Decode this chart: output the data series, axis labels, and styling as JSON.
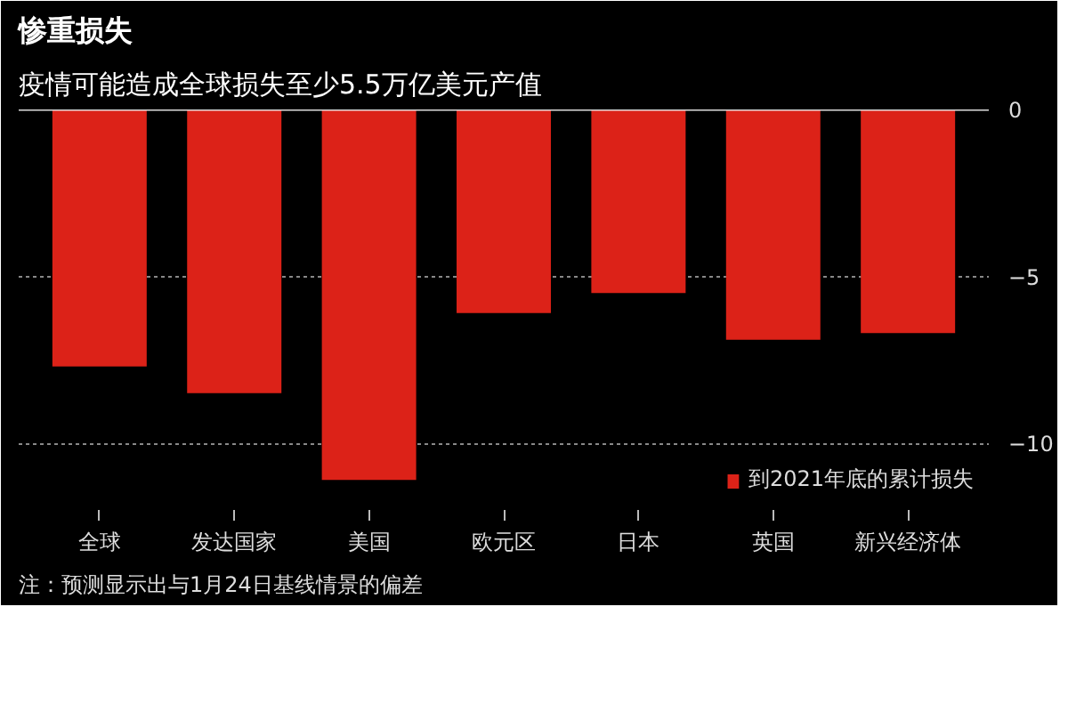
{
  "chart_data": {
    "type": "bar",
    "title": "惨重损失",
    "subtitle": "疫情可能造成全球损失至少5.5万亿美元产值",
    "categories": [
      "全球",
      "发达国家",
      "美国",
      "欧元区",
      "日本",
      "英国",
      "新兴经济体"
    ],
    "series": [
      {
        "name": "到2021年底的累计损失",
        "color": "#dc2218",
        "values": [
          -7.7,
          -8.5,
          -11.1,
          -6.1,
          -5.5,
          -6.9,
          -6.7
        ]
      }
    ],
    "ylim": [
      -12,
      0
    ],
    "yticks": [
      -10,
      -5,
      0
    ],
    "grid": "y",
    "legend": "bottom right",
    "annotations": [
      "注：预测显示出与1月24日基线情景的偏差"
    ]
  }
}
